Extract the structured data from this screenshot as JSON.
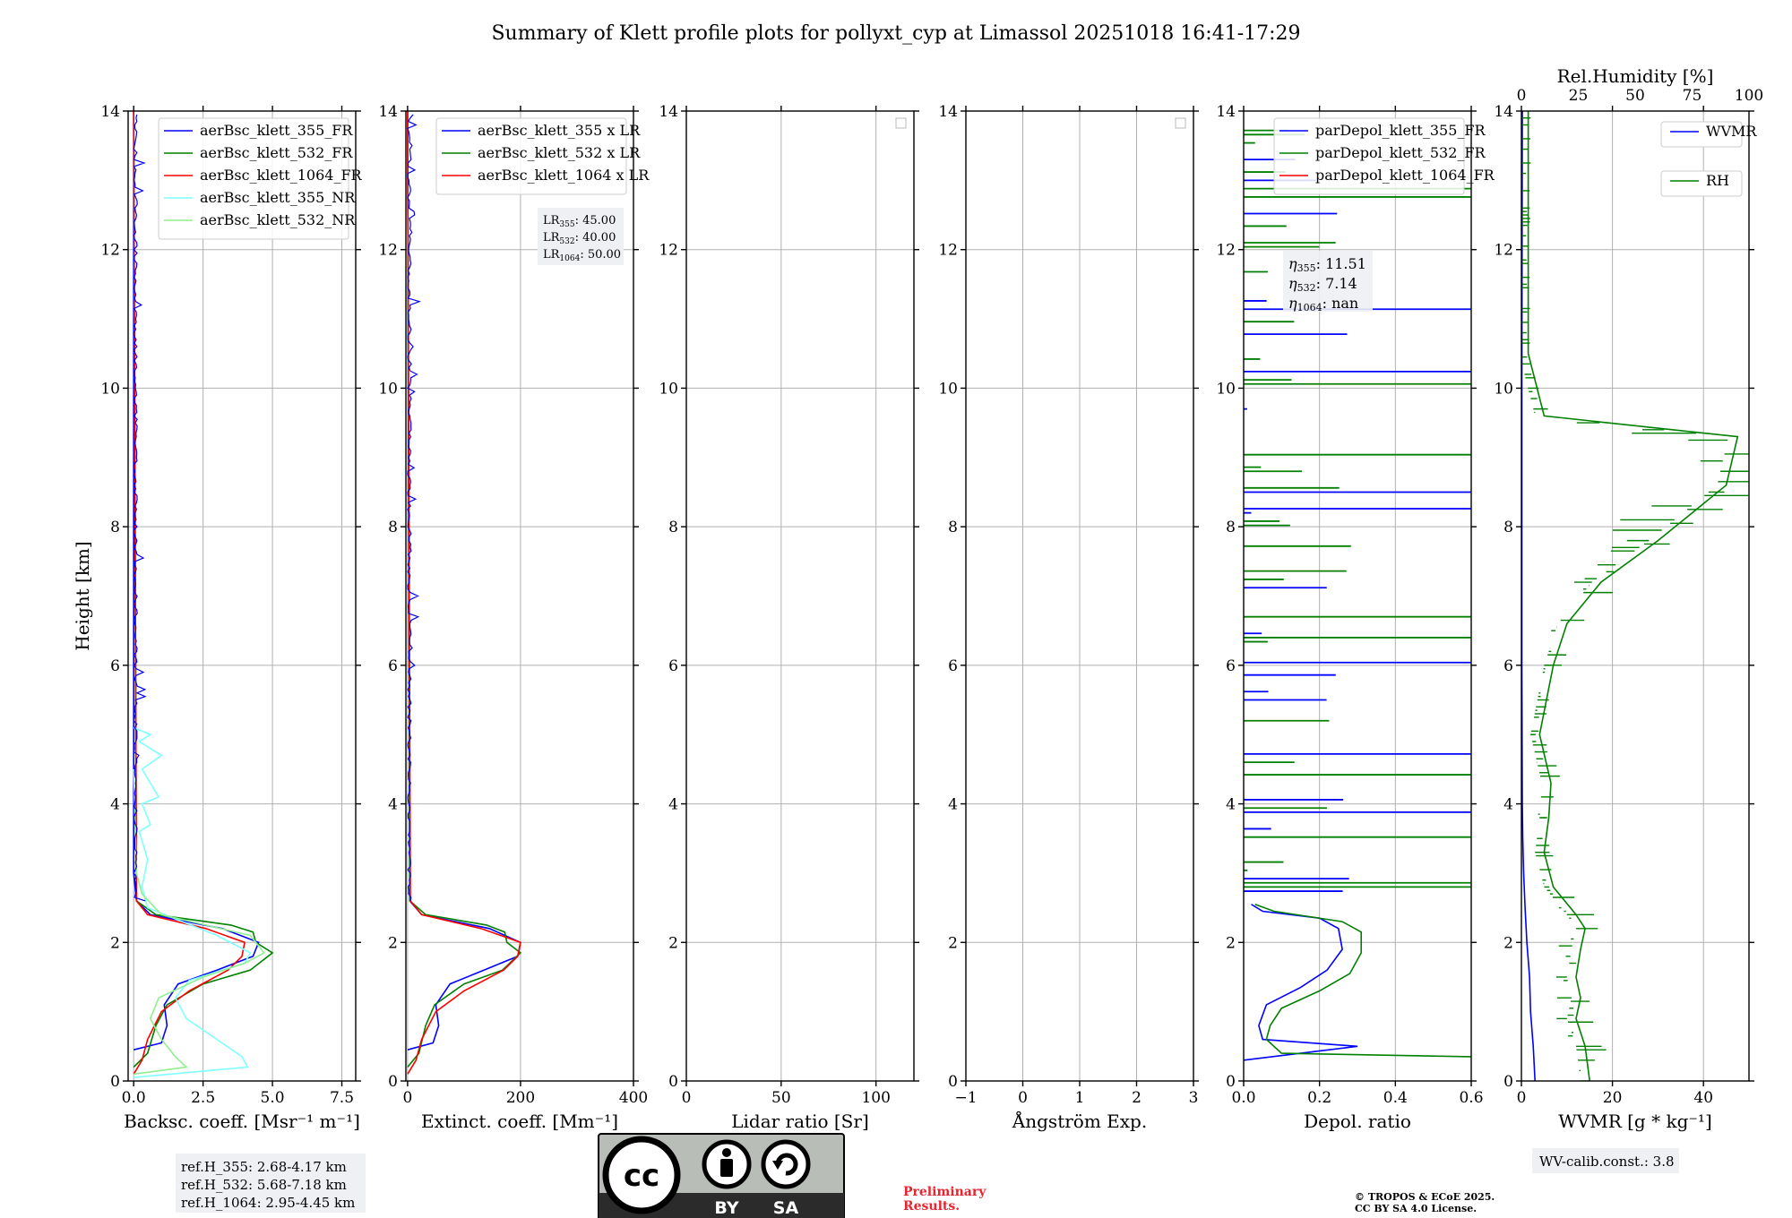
{
  "title": "Summary of Klett profile plots for pollyxt_cyp at Limassol 20251018 16:41-17:29",
  "colors": {
    "b355": "#0000ff",
    "b532": "#008000",
    "b1064": "#ff0000",
    "n355": "#7fffff",
    "n532": "#90ee90",
    "grid": "#b0b0b0",
    "boxbg": "#eef0f4"
  },
  "chart_data": [
    {
      "type": "line",
      "ylabel": "Height [km]",
      "xlabel": "Backsc. coeff. [Msr⁻¹ m⁻¹]",
      "xlim": [
        -0.2,
        8
      ],
      "ylim": [
        0,
        14
      ],
      "xticks": [
        "0.0",
        "2.5",
        "5.0",
        "7.5"
      ],
      "xtick_values": [
        0,
        2.5,
        5,
        7.5
      ],
      "yticks": [
        "0",
        "2",
        "4",
        "6",
        "8",
        "10",
        "12",
        "14"
      ],
      "legend": [
        "aerBsc_klett_355_FR",
        "aerBsc_klett_532_FR",
        "aerBsc_klett_1064_FR",
        "aerBsc_klett_355_NR",
        "aerBsc_klett_532_NR"
      ],
      "legend_placement": "top-right",
      "grid": true,
      "series": [
        {
          "name": "aerBsc_klett_355_FR",
          "color": "#0000ff",
          "x": [
            0.0,
            1.0,
            1.2,
            1.1,
            1.6,
            3.0,
            4.3,
            4.5,
            3.2,
            0.6,
            0.1,
            0.0,
            0.0
          ],
          "y": [
            0.45,
            0.55,
            0.8,
            1.1,
            1.4,
            1.6,
            1.8,
            2.0,
            2.2,
            2.4,
            2.6,
            3.0,
            14.0
          ]
        },
        {
          "name": "aerBsc_klett_532_FR",
          "color": "#008000",
          "x": [
            0.0,
            0.5,
            0.8,
            1.2,
            2.5,
            4.2,
            5.0,
            4.4,
            4.3,
            3.5,
            0.8,
            0.1,
            0.0
          ],
          "y": [
            0.2,
            0.4,
            0.8,
            1.1,
            1.4,
            1.6,
            1.85,
            2.0,
            2.15,
            2.25,
            2.4,
            2.6,
            14.0
          ]
        },
        {
          "name": "aerBsc_klett_1064_FR",
          "color": "#ff0000",
          "x": [
            0.0,
            0.3,
            0.5,
            1.0,
            2.0,
            3.4,
            3.9,
            4.0,
            2.6,
            0.5,
            0.1,
            0.0
          ],
          "y": [
            0.1,
            0.3,
            0.6,
            1.0,
            1.3,
            1.6,
            1.8,
            2.0,
            2.2,
            2.4,
            2.6,
            14.0
          ]
        },
        {
          "name": "aerBsc_klett_355_NR",
          "color": "#7fffff",
          "x": [
            0.0,
            4.1,
            3.9,
            3.0,
            1.9,
            1.5,
            2.0,
            4.0,
            4.2,
            3.0,
            0.5,
            0.3,
            0.5,
            0.2,
            0.6,
            0.3,
            0.9,
            0.3,
            1.0,
            0.2,
            0.6,
            0.0
          ],
          "y": [
            0.05,
            0.2,
            0.35,
            0.6,
            0.9,
            1.2,
            1.45,
            1.7,
            1.85,
            2.1,
            2.5,
            2.8,
            3.2,
            3.6,
            3.7,
            4.0,
            4.1,
            4.5,
            4.7,
            4.9,
            5.0,
            5.1
          ]
        },
        {
          "name": "aerBsc_klett_532_NR",
          "color": "#90ee90",
          "x": [
            0.0,
            1.9,
            1.5,
            1.0,
            0.6,
            0.9,
            2.5,
            4.0,
            4.7,
            4.2,
            1.0,
            0.3,
            0.1,
            0.0
          ],
          "y": [
            0.1,
            0.2,
            0.35,
            0.6,
            0.9,
            1.2,
            1.5,
            1.7,
            1.85,
            2.1,
            2.4,
            2.7,
            3.0,
            4.5
          ]
        }
      ],
      "annotation": [
        "ref.H_355: 2.68-4.17 km",
        "ref.H_532: 5.68-7.18 km",
        "ref.H_1064: 2.95-4.45 km"
      ]
    },
    {
      "type": "line",
      "xlabel": "Extinct. coeff. [Mm⁻¹]",
      "xlim": [
        -3,
        400
      ],
      "ylim": [
        0,
        14
      ],
      "xticks": [
        "0",
        "200",
        "400"
      ],
      "xtick_values": [
        0,
        200,
        400
      ],
      "yticks": [
        "0",
        "2",
        "4",
        "6",
        "8",
        "10",
        "12",
        "14"
      ],
      "legend": [
        "aerBsc_klett_355 x LR",
        "aerBsc_klett_532 x LR",
        "aerBsc_klett_1064 x LR"
      ],
      "legend_placement": "top-right",
      "grid": true,
      "series": [
        {
          "name": "aerBsc_klett_355 x LR",
          "color": "#0000ff",
          "x": [
            0,
            45,
            55,
            50,
            75,
            135,
            195,
            200,
            145,
            25,
            4,
            0
          ],
          "y": [
            0.45,
            0.55,
            0.8,
            1.1,
            1.4,
            1.6,
            1.8,
            2.0,
            2.2,
            2.4,
            2.6,
            14.0
          ]
        },
        {
          "name": "aerBsc_klett_532 x LR",
          "color": "#008000",
          "x": [
            0,
            20,
            32,
            48,
            100,
            168,
            200,
            176,
            172,
            140,
            32,
            4,
            0
          ],
          "y": [
            0.2,
            0.4,
            0.8,
            1.1,
            1.4,
            1.6,
            1.85,
            2.0,
            2.15,
            2.25,
            2.4,
            2.6,
            14.0
          ]
        },
        {
          "name": "aerBsc_klett_1064 x LR",
          "color": "#ff0000",
          "x": [
            0,
            15,
            25,
            50,
            100,
            170,
            195,
            200,
            130,
            25,
            5,
            0
          ],
          "y": [
            0.1,
            0.3,
            0.6,
            1.0,
            1.3,
            1.6,
            1.8,
            2.0,
            2.2,
            2.4,
            2.6,
            14.0
          ]
        }
      ],
      "annotation": [
        "LR",
        "355",
        ": 45.00",
        "LR",
        "532",
        ": 40.00",
        "LR",
        "1064",
        ": 50.00"
      ]
    },
    {
      "type": "line",
      "xlabel": "Lidar ratio [Sr]",
      "xlim": [
        0,
        120
      ],
      "ylim": [
        0,
        14
      ],
      "xticks": [
        "0",
        "50",
        "100"
      ],
      "xtick_values": [
        0,
        50,
        100
      ],
      "yticks": [
        "0",
        "2",
        "4",
        "6",
        "8",
        "10",
        "12",
        "14"
      ],
      "grid": true,
      "series": []
    },
    {
      "type": "line",
      "xlabel": "Ångström Exp.",
      "xlim": [
        -1,
        3
      ],
      "ylim": [
        0,
        14
      ],
      "xticks": [
        "−1",
        "0",
        "1",
        "2",
        "3"
      ],
      "xtick_values": [
        -1,
        0,
        1,
        2,
        3
      ],
      "yticks": [
        "0",
        "2",
        "4",
        "6",
        "8",
        "10",
        "12",
        "14"
      ],
      "grid": true,
      "series": []
    },
    {
      "type": "line",
      "xlabel": "Depol. ratio",
      "xlim": [
        0,
        0.6
      ],
      "ylim": [
        0,
        14
      ],
      "xticks": [
        "0.0",
        "0.2",
        "0.4",
        "0.6"
      ],
      "xtick_values": [
        0,
        0.2,
        0.4,
        0.6
      ],
      "yticks": [
        "0",
        "2",
        "4",
        "6",
        "8",
        "10",
        "12",
        "14"
      ],
      "legend": [
        "parDepol_klett_355_FR",
        "parDepol_klett_532_FR",
        "parDepol_klett_1064_FR"
      ],
      "legend_placement": "top-right",
      "grid": true,
      "series": [
        {
          "name": "parDepol_klett_355_FR",
          "color": "#0000ff",
          "x": [
            0.0,
            0.3,
            0.05,
            0.04,
            0.06,
            0.15,
            0.22,
            0.26,
            0.25,
            0.2,
            0.05,
            0.02
          ],
          "y": [
            0.3,
            0.5,
            0.6,
            0.8,
            1.1,
            1.35,
            1.6,
            1.9,
            2.2,
            2.35,
            2.45,
            2.55
          ]
        },
        {
          "name": "parDepol_klett_532_FR",
          "color": "#008000",
          "x": [
            0.6,
            0.1,
            0.06,
            0.07,
            0.1,
            0.2,
            0.28,
            0.31,
            0.31,
            0.26,
            0.08,
            0.03
          ],
          "y": [
            0.35,
            0.4,
            0.6,
            0.8,
            1.05,
            1.3,
            1.55,
            1.85,
            2.15,
            2.3,
            2.45,
            2.55
          ]
        }
      ],
      "annotation": [
        "η",
        "355",
        ": 11.51",
        "η",
        "532",
        ": 7.14",
        "η",
        "1064",
        ": nan"
      ]
    },
    {
      "type": "line",
      "xlabel": "WVMR [g * kg⁻¹]",
      "x2label": "Rel.Humidity [%]",
      "xlim": [
        0,
        50
      ],
      "x2lim": [
        0,
        100
      ],
      "ylim": [
        0,
        14
      ],
      "xticks": [
        "0",
        "20",
        "40"
      ],
      "xtick_values": [
        0,
        20,
        40
      ],
      "x2ticks": [
        "0",
        "25",
        "50",
        "75",
        "100"
      ],
      "x2tick_values": [
        0,
        25,
        50,
        75,
        100
      ],
      "yticks": [
        "0",
        "2",
        "4",
        "6",
        "8",
        "10",
        "12",
        "14"
      ],
      "legend": [
        "WVMR",
        "RH"
      ],
      "legend_placement": "top-right",
      "grid": true,
      "series": [
        {
          "name": "WVMR",
          "color": "#0000ff",
          "axis": "x",
          "x": [
            3.0,
            2.6,
            2.0,
            1.8,
            1.2,
            0.8,
            0.5,
            0.3,
            0.2,
            0.1,
            0.1,
            0.2
          ],
          "y": [
            0.0,
            0.5,
            1.0,
            1.5,
            2.0,
            2.5,
            3.0,
            3.5,
            4.0,
            6.0,
            10.0,
            14.0
          ]
        },
        {
          "name": "RH",
          "color": "#008000",
          "axis": "x2",
          "x": [
            30,
            28,
            24,
            26,
            24,
            26,
            28,
            24,
            14,
            10,
            12,
            13,
            8,
            14,
            20,
            35,
            60,
            75,
            90,
            95,
            10,
            3,
            3,
            3
          ],
          "y": [
            0.0,
            0.5,
            0.9,
            1.2,
            1.5,
            1.9,
            2.2,
            2.4,
            2.8,
            3.3,
            3.8,
            4.3,
            5.0,
            6.0,
            6.6,
            7.2,
            7.8,
            8.2,
            8.6,
            9.3,
            9.6,
            10.5,
            12.0,
            14.0
          ]
        }
      ],
      "annotation": [
        "WV-calib.const.: 3.8"
      ]
    }
  ],
  "footer": {
    "cc_by": "BY",
    "cc_sa": "SA",
    "preliminary_1": "Preliminary",
    "preliminary_2": "Results.",
    "copyright_1": "© TROPOS & ECoE 2025.",
    "copyright_2": "CC BY SA 4.0 License."
  }
}
